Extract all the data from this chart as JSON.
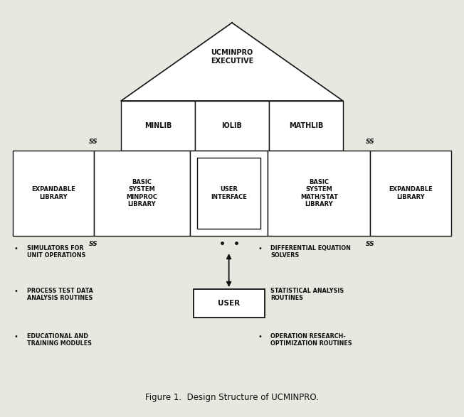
{
  "title": "Figure 1.  Design Structure of UCMINPRO.",
  "background_color": "#e8e8e0",
  "text_color": "#111111",
  "box_color": "#ffffff",
  "line_color": "#111111",
  "executive_label": "UCMINPRO\nEXECUTIVE",
  "lib_labels": [
    "MINLIB",
    "IOLIB",
    "MATHLIB"
  ],
  "row2_labels": [
    "EXPANDABLE\nLIBRARY",
    "BASIC\nSYSTEM\nMINPROC\nLIBRARY",
    "USER\nINTERFACE",
    "BASIC\nSYSTEM\nMATH/STAT\nLIBRARY",
    "EXPANDABLE\nLIBRARY"
  ],
  "left_bullets": [
    "SIMULATORS FOR\nUNIT OPERATIONS",
    "PROCESS TEST DATA\nANALYSIS ROUTINES",
    "EDUCATIONAL AND\nTRAINING MODULES"
  ],
  "right_bullets": [
    "DIFFERENTIAL EQUATION\nSOLVERS",
    "STATISTICAL ANALYSIS\nROUTINES",
    "OPERATION RESEARCH-\nOPTIMIZATION ROUTINES"
  ],
  "user_label": "USER"
}
